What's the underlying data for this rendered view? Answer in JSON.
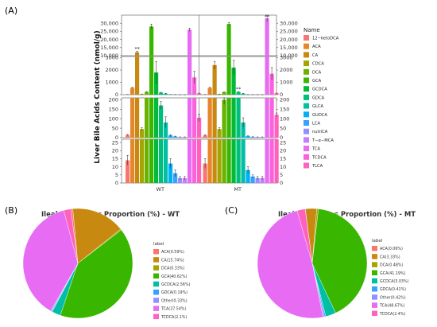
{
  "panels": {
    "A": "(A)",
    "B": "(B)",
    "C": "(C)"
  },
  "chart_data": [
    {
      "type": "bar",
      "panel": "A",
      "ylabel": "Liver Bile Acids Content (nmol/g)",
      "groups": [
        "WT",
        "MT"
      ],
      "legend_title": "Name",
      "species": [
        {
          "name": "12−ketoDCA",
          "color": "#F8766D"
        },
        {
          "name": "ACA",
          "color": "#E6862A"
        },
        {
          "name": "CA",
          "color": "#C7890F"
        },
        {
          "name": "CDCA",
          "color": "#A3A500"
        },
        {
          "name": "DCA",
          "color": "#6BB100"
        },
        {
          "name": "GCA",
          "color": "#39B600"
        },
        {
          "name": "GCDCA",
          "color": "#00BA38"
        },
        {
          "name": "GDCA",
          "color": "#00BF7D"
        },
        {
          "name": "GLCA",
          "color": "#00BFA5"
        },
        {
          "name": "GUDCA",
          "color": "#00B0F6"
        },
        {
          "name": "LCA",
          "color": "#35A2FF"
        },
        {
          "name": "nutriCA",
          "color": "#9590FF"
        },
        {
          "name": "T−α−MCA",
          "color": "#C77CFF"
        },
        {
          "name": "TCA",
          "color": "#E76BF3"
        },
        {
          "name": "TCDCA",
          "color": "#FA62DB"
        },
        {
          "name": "TLCA",
          "color": "#FF62BC"
        }
      ],
      "series": [
        {
          "name": "WT",
          "values": [
            14,
            555,
            12000,
            45,
            220,
            28000,
            1800,
            170,
            80,
            12,
            6,
            3,
            3,
            26000,
            1400,
            105
          ],
          "errors": [
            3,
            40,
            800,
            8,
            25,
            1500,
            900,
            20,
            30,
            3,
            2,
            1,
            1,
            1000,
            500,
            20
          ]
        },
        {
          "name": "MT",
          "values": [
            12,
            555,
            2400,
            45,
            200,
            29500,
            2200,
            220,
            80,
            8,
            4,
            3,
            3,
            33000,
            1700,
            120
          ],
          "errors": [
            3,
            40,
            300,
            8,
            25,
            1000,
            600,
            30,
            25,
            2,
            1,
            1,
            1,
            2000,
            500,
            10
          ]
        }
      ],
      "facets": [
        {
          "ylim": [
            10000,
            35000
          ],
          "ticks": [
            "10,000",
            "15,000",
            "20,000",
            "25,000",
            "30,000"
          ],
          "tick_values": [
            10000,
            15000,
            20000,
            25000,
            30000
          ]
        },
        {
          "ylim": [
            0,
            3100
          ],
          "ticks": [
            "0",
            "1000",
            "2000",
            "3000"
          ],
          "tick_values": [
            0,
            1000,
            2000,
            3000
          ]
        },
        {
          "ylim": [
            0,
            210
          ],
          "ticks": [
            "0",
            "50",
            "100",
            "150",
            "200"
          ],
          "tick_values": [
            0,
            50,
            100,
            150,
            200
          ]
        },
        {
          "ylim": [
            0,
            27
          ],
          "ticks": [
            "0",
            "5",
            "10",
            "15",
            "20",
            "25"
          ],
          "tick_values": [
            0,
            5,
            10,
            15,
            20,
            25
          ]
        }
      ],
      "significance": [
        {
          "group": "WT",
          "index": 2,
          "text": "**"
        },
        {
          "group": "MT",
          "index": 13,
          "text": "**"
        },
        {
          "group": "MT",
          "index": 7,
          "text": "**"
        }
      ]
    },
    {
      "type": "pie",
      "panel": "B",
      "title": "Ileal Bile Acides  Proportion (%) - WT",
      "legend_title": "label",
      "slices": [
        {
          "label": "ACA(0.59%)",
          "value": 0.59,
          "color": "#F8766D"
        },
        {
          "label": "CA(15.74%)",
          "value": 15.74,
          "color": "#C7890F"
        },
        {
          "label": "DCA(0.33%)",
          "value": 0.33,
          "color": "#A3A500"
        },
        {
          "label": "GCA(40.62%)",
          "value": 40.62,
          "color": "#39B600"
        },
        {
          "label": "GCDCA(2.56%)",
          "value": 2.56,
          "color": "#00BFA5"
        },
        {
          "label": "GDCA(0.19%)",
          "value": 0.19,
          "color": "#35A2FF"
        },
        {
          "label": "Other(0.33%)",
          "value": 0.33,
          "color": "#9590FF"
        },
        {
          "label": "TCA(37.54%)",
          "value": 37.54,
          "color": "#E76BF3"
        },
        {
          "label": "TCDCA(2.1%)",
          "value": 2.1,
          "color": "#FF62BC"
        }
      ]
    },
    {
      "type": "pie",
      "panel": "C",
      "title": "Ileal Bile Acides  Proportion (%) - MT",
      "legend_title": "label",
      "slices": [
        {
          "label": "ACA(0.06%)",
          "value": 0.06,
          "color": "#F8766D"
        },
        {
          "label": "CA(3.33%)",
          "value": 3.33,
          "color": "#C7890F"
        },
        {
          "label": "DCA(0.48%)",
          "value": 0.48,
          "color": "#A3A500"
        },
        {
          "label": "GCA(41.19%)",
          "value": 41.19,
          "color": "#39B600"
        },
        {
          "label": "GCDCA(3.03%)",
          "value": 3.03,
          "color": "#00BFA5"
        },
        {
          "label": "GDCA(0.41%)",
          "value": 0.41,
          "color": "#35A2FF"
        },
        {
          "label": "Other(0.42%)",
          "value": 0.42,
          "color": "#9590FF"
        },
        {
          "label": "TCA(48.67%)",
          "value": 48.67,
          "color": "#E76BF3"
        },
        {
          "label": "TCDCA(2.4%)",
          "value": 2.4,
          "color": "#FF62BC"
        }
      ]
    }
  ]
}
